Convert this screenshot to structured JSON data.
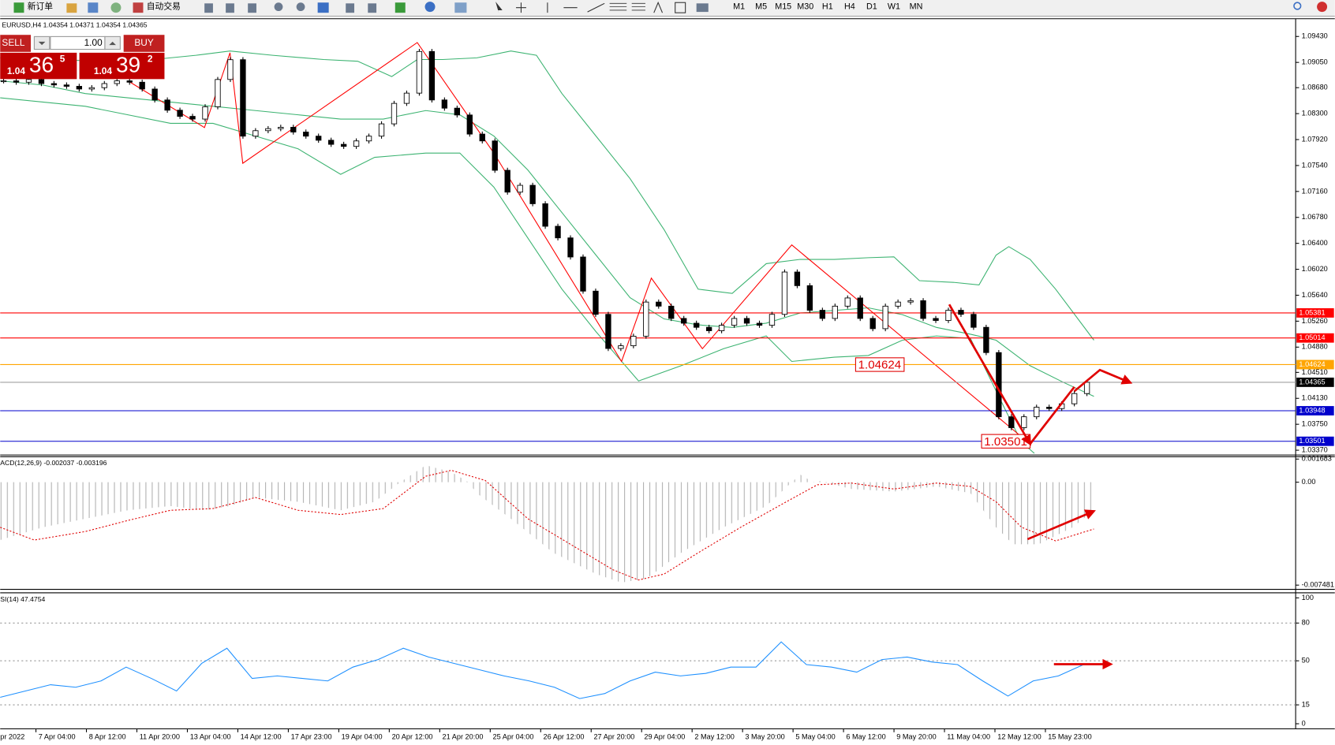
{
  "toolbar": {
    "new_order": "新订单",
    "auto_trading": "自动交易",
    "timeframes": [
      "M1",
      "M5",
      "M15",
      "M30",
      "H1",
      "H4",
      "D1",
      "W1",
      "MN"
    ]
  },
  "trade_panel": {
    "sell": "SELL",
    "lots": "1.00",
    "buy": "BUY",
    "bid": {
      "big": "1.04",
      "mid": "36",
      "small": "5"
    },
    "ask": {
      "big": "1.04",
      "mid": "39",
      "small": "2"
    }
  },
  "time_labels": [
    "pr 2022",
    "7 Apr 04:00",
    "8 Apr 12:00",
    "11 Apr 20:00",
    "13 Apr 04:00",
    "14 Apr 12:00",
    "17 Apr 23:00",
    "19 Apr 04:00",
    "20 Apr 12:00",
    "21 Apr 20:00",
    "25 Apr 04:00",
    "26 Apr 12:00",
    "27 Apr 20:00",
    "29 Apr 04:00",
    "2 May 12:00",
    "3 May 20:00",
    "5 May 04:00",
    "6 May 12:00",
    "9 May 20:00",
    "11 May 04:00",
    "12 May 12:00",
    "15 May 23:00"
  ],
  "chart_data": [
    {
      "type": "candlestick",
      "title": "EURUSD,H4 1.04354 1.04371 1.04354 1.04365",
      "values": [
        1.0878,
        1.0876,
        1.088,
        1.0874,
        1.0872,
        1.087,
        1.0866,
        1.0868,
        1.0874,
        1.0878,
        1.0876,
        1.0866,
        1.085,
        1.0835,
        1.0826,
        1.0822,
        1.084,
        1.088,
        1.0909,
        1.0797,
        1.0805,
        1.0808,
        1.081,
        1.0803,
        1.0797,
        1.0791,
        1.0785,
        1.0782,
        1.079,
        1.0797,
        1.0815,
        1.0845,
        1.086,
        1.0921,
        1.085,
        1.0838,
        1.0828,
        1.08,
        1.079,
        1.0747,
        1.0715,
        1.0725,
        1.0698,
        1.0665,
        1.0648,
        1.062,
        1.057,
        1.0536,
        1.0486,
        1.049,
        1.0504,
        1.0554,
        1.0548,
        1.053,
        1.0523,
        1.0517,
        1.0512,
        1.052,
        1.053,
        1.0523,
        1.052,
        1.0536,
        1.0598,
        1.0578,
        1.0542,
        1.053,
        1.0548,
        1.056,
        1.053,
        1.0515,
        1.0548,
        1.0554,
        1.0556,
        1.053,
        1.0527,
        1.0542,
        1.0536,
        1.0517,
        1.048,
        1.0386,
        1.037,
        1.0386,
        1.04,
        1.0398,
        1.0405,
        1.042,
        1.04365
      ],
      "ylim": [
        1.033,
        1.0969
      ],
      "yticks": [
        {
          "value": 1.0943,
          "label": "1.09430"
        },
        {
          "value": 1.0905,
          "label": "1.09050"
        },
        {
          "value": 1.0868,
          "label": "1.08680"
        },
        {
          "value": 1.083,
          "label": "1.08300"
        },
        {
          "value": 1.0792,
          "label": "1.07920"
        },
        {
          "value": 1.0754,
          "label": "1.07540"
        },
        {
          "value": 1.0716,
          "label": "1.07160"
        },
        {
          "value": 1.0678,
          "label": "1.06780"
        },
        {
          "value": 1.064,
          "label": "1.06400"
        },
        {
          "value": 1.0602,
          "label": "1.06020"
        },
        {
          "value": 1.0564,
          "label": "1.05640"
        },
        {
          "value": 1.0526,
          "label": "1.05260"
        },
        {
          "value": 1.0488,
          "label": "1.04880"
        },
        {
          "value": 1.0451,
          "label": "1.04510"
        },
        {
          "value": 1.0413,
          "label": "1.04130"
        },
        {
          "value": 1.0375,
          "label": "1.03750"
        },
        {
          "value": 1.0337,
          "label": "1.03370"
        }
      ],
      "levels": [
        {
          "value": 1.05381,
          "label": "1.05381",
          "color": "#ff0000"
        },
        {
          "value": 1.05014,
          "label": "1.05014",
          "color": "#ff0000"
        },
        {
          "value": 1.04624,
          "label": "1.04624",
          "color": "#ffa500"
        },
        {
          "value": 1.04365,
          "label": "1.04365",
          "color": "#000000"
        },
        {
          "value": 1.03948,
          "label": "1.03948",
          "color": "#0000cc"
        },
        {
          "value": 1.03501,
          "label": "1.03501",
          "color": "#0000cc"
        }
      ],
      "annotations": [
        {
          "value": 1.04624,
          "label": "1.04624"
        },
        {
          "value": 1.03501,
          "label": "1.03501"
        }
      ]
    },
    {
      "type": "macd",
      "title": "ACD(12,26,9) -0.002037 -0.003196",
      "ylim": [
        -0.00779,
        0.001855
      ],
      "yticks": [
        {
          "value": 0.001683,
          "label": "0.001683"
        },
        {
          "value": 0,
          "label": "0.00"
        },
        {
          "value": -0.007481,
          "label": "-0.007481"
        }
      ]
    },
    {
      "type": "line",
      "title": "SI(14) 47.4754",
      "color": "#1e90ff",
      "values": [
        21,
        26,
        31,
        29,
        34,
        45,
        36,
        26,
        48,
        60,
        36,
        38,
        36,
        34,
        45,
        51,
        60,
        53,
        48,
        43,
        38,
        34,
        29,
        20,
        24,
        34,
        41,
        38,
        40,
        45,
        45,
        65,
        47,
        45,
        41,
        51,
        53,
        49,
        47,
        34,
        22,
        34,
        38,
        47
      ],
      "ylim": [
        0,
        100
      ],
      "yticks": [
        0,
        15,
        50,
        80,
        100
      ]
    }
  ]
}
